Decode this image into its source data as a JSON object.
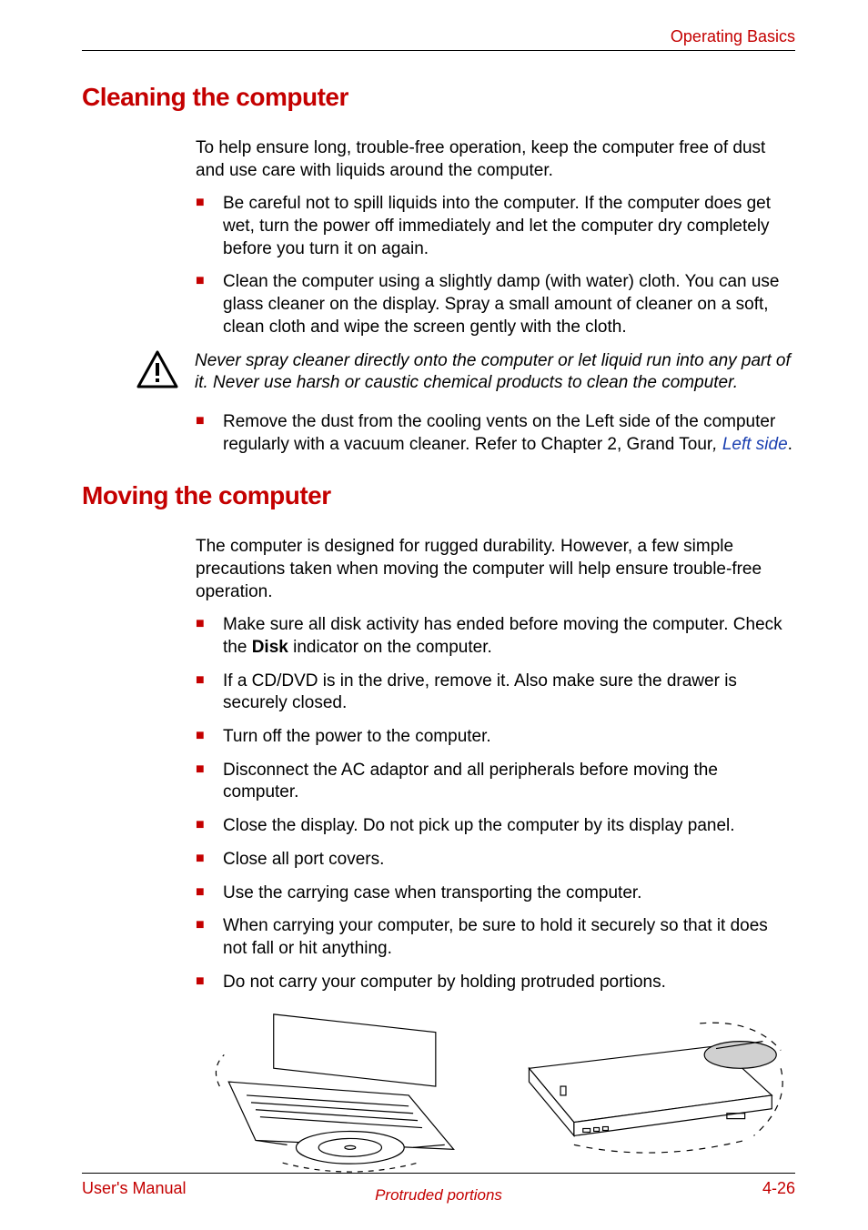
{
  "colors": {
    "accent": "#c40000",
    "text": "#000000",
    "link": "#1a3fb0",
    "bullet": "#c40000"
  },
  "header": {
    "section": "Operating Basics"
  },
  "section1": {
    "title": "Cleaning the computer",
    "intro": "To help ensure long, trouble-free operation, keep the computer free of dust and use care with liquids around the computer.",
    "bullets_a": [
      "Be careful not to spill liquids into the computer. If the computer does get wet, turn the power off immediately and let the computer dry completely before you turn it on again.",
      "Clean the computer using a slightly damp (with water) cloth. You can use glass cleaner on the display. Spray a small amount of cleaner on a soft, clean cloth and wipe the screen gently with the cloth."
    ],
    "warning": "Never spray cleaner directly onto the computer or let liquid run into any part of it. Never use harsh or caustic chemical products to clean the computer.",
    "bullet_b_pre": "Remove the dust from the cooling vents on the Left side of the computer regularly with a vacuum cleaner. Refer to Chapter 2,  Grand Tour",
    "bullet_b_sep": ", ",
    "bullet_b_link": "Left side",
    "bullet_b_post": "."
  },
  "section2": {
    "title": "Moving the computer",
    "intro": "The computer is designed for rugged durability. However, a few simple precautions taken when moving the computer will help ensure trouble-free operation.",
    "bullet1_pre": "Make sure all disk activity has ended before moving the computer. Check the ",
    "bullet1_bold": "Disk",
    "bullet1_post": " indicator on the computer.",
    "bullets_rest": [
      "If a CD/DVD is in the drive, remove it. Also make sure the drawer is securely closed.",
      "Turn off the power to the computer.",
      "Disconnect the AC adaptor and all peripherals before moving the computer.",
      "Close the display. Do not pick up the computer by its display panel.",
      "Close all port covers.",
      "Use the carrying case when transporting the computer.",
      "When carrying your computer, be sure to hold it securely so that it does not fall or hit anything.",
      "Do not carry your computer by holding protruded portions."
    ],
    "figure_caption": "Protruded portions"
  },
  "footer": {
    "left": "User's Manual",
    "right": "4-26"
  }
}
